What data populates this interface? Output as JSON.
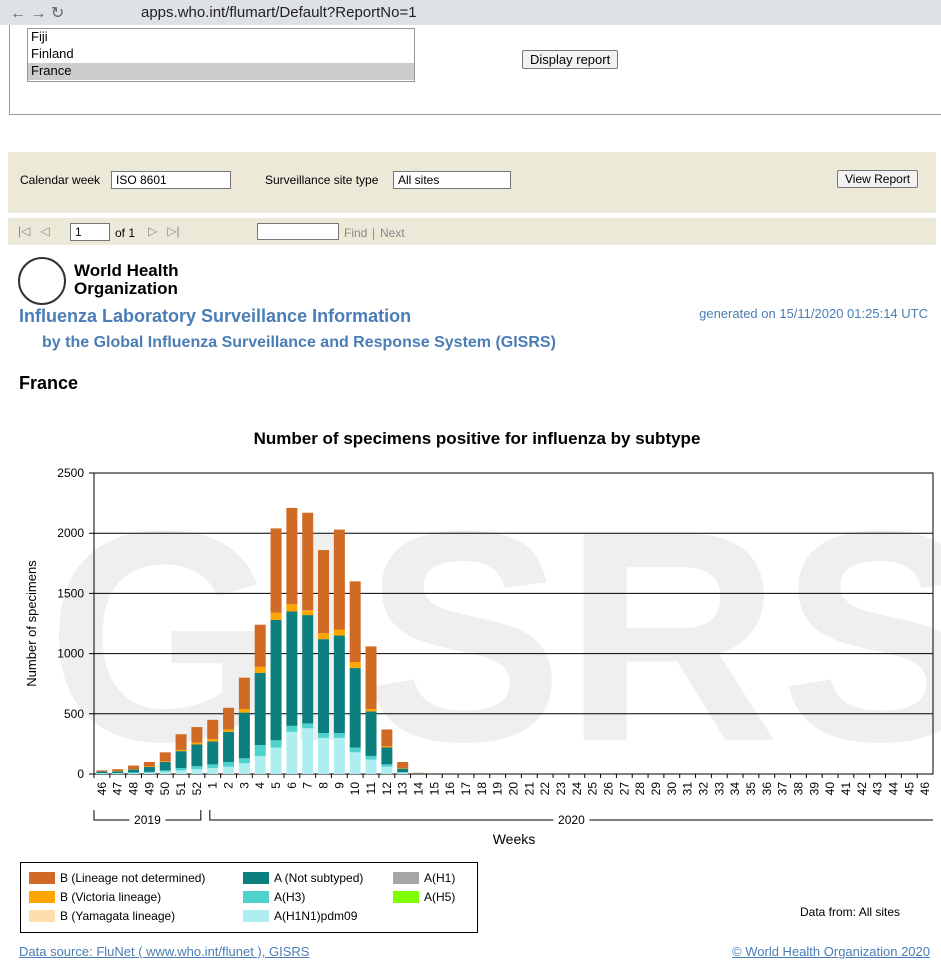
{
  "browser": {
    "url": "apps.who.int/flumart/Default?ReportNo=1"
  },
  "country_list": {
    "items": [
      "Fiji",
      "Finland",
      "France"
    ],
    "button": "Display report"
  },
  "parameters": {
    "calendar_label": "Calendar week",
    "calendar_value": "ISO 8601",
    "site_label": "Surveillance site type",
    "site_value": "All sites",
    "view_button": "View Report"
  },
  "toolbar": {
    "page": "1",
    "of": "of 1",
    "find": "Find",
    "separator": "|",
    "next": "Next"
  },
  "header": {
    "org_line1": "World Health",
    "org_line2": "Organization",
    "title": "Influenza Laboratory Surveillance Information",
    "subtitle": "by the Global Influenza Surveillance and Response System (GISRS)",
    "generated": "generated on 15/11/2020 01:25:14 UTC",
    "country": "France"
  },
  "chart_data": {
    "type": "bar",
    "stacked": true,
    "title": "Number of specimens positive for influenza by subtype",
    "watermark": "GISRS",
    "y_label": "Number of specimens",
    "x_label": "Weeks",
    "year_groups": [
      "2019",
      "2020"
    ],
    "categories": [
      "46",
      "47",
      "48",
      "49",
      "50",
      "51",
      "52",
      "1",
      "2",
      "3",
      "4",
      "5",
      "6",
      "7",
      "8",
      "9",
      "10",
      "11",
      "12",
      "13",
      "14",
      "15",
      "16",
      "17",
      "18",
      "19",
      "20",
      "21",
      "22",
      "23",
      "24",
      "25",
      "26",
      "27",
      "28",
      "29",
      "30",
      "31",
      "32",
      "33",
      "34",
      "35",
      "36",
      "37",
      "38",
      "39",
      "40",
      "41",
      "42",
      "43",
      "44",
      "45",
      "46"
    ],
    "ylim": [
      0,
      2500
    ],
    "yticks": [
      0,
      500,
      1000,
      1500,
      2000,
      2500
    ],
    "grid": true,
    "series": [
      {
        "name": "A(H1N1)pdm09",
        "color": "#aeeef0",
        "values": [
          5,
          5,
          8,
          10,
          20,
          30,
          40,
          50,
          60,
          90,
          150,
          220,
          350,
          380,
          300,
          300,
          180,
          120,
          60,
          10,
          0,
          0,
          0,
          0,
          0,
          0,
          0,
          0,
          0,
          0,
          0,
          0,
          0,
          0,
          0,
          0,
          0,
          0,
          0,
          0,
          0,
          0,
          0,
          0,
          0,
          0,
          0,
          0,
          0,
          0,
          0,
          0,
          0
        ]
      },
      {
        "name": "A(H3)",
        "color": "#4fd1cc",
        "values": [
          3,
          3,
          5,
          8,
          10,
          20,
          25,
          30,
          40,
          40,
          90,
          60,
          50,
          40,
          40,
          40,
          40,
          30,
          20,
          5,
          0,
          0,
          0,
          0,
          0,
          0,
          0,
          0,
          0,
          0,
          0,
          0,
          0,
          0,
          0,
          0,
          0,
          0,
          0,
          0,
          0,
          0,
          0,
          0,
          0,
          0,
          0,
          0,
          0,
          0,
          0,
          0,
          0
        ]
      },
      {
        "name": "A (Not subtyped)",
        "color": "#0e7f7f",
        "values": [
          12,
          15,
          25,
          40,
          70,
          140,
          180,
          190,
          250,
          380,
          600,
          1000,
          950,
          900,
          780,
          810,
          660,
          370,
          140,
          30,
          5,
          0,
          0,
          0,
          0,
          0,
          0,
          0,
          0,
          0,
          0,
          0,
          0,
          0,
          0,
          0,
          0,
          0,
          0,
          0,
          0,
          0,
          0,
          0,
          0,
          0,
          0,
          0,
          0,
          0,
          0,
          0,
          0
        ]
      },
      {
        "name": "A(H1)",
        "color": "#a6a6a6",
        "values": [
          0,
          0,
          0,
          0,
          0,
          0,
          0,
          0,
          0,
          0,
          0,
          0,
          0,
          0,
          0,
          0,
          0,
          0,
          0,
          0,
          0,
          0,
          0,
          0,
          0,
          0,
          0,
          0,
          0,
          0,
          0,
          0,
          0,
          0,
          0,
          0,
          0,
          0,
          0,
          0,
          0,
          0,
          0,
          0,
          0,
          0,
          0,
          0,
          0,
          0,
          0,
          0,
          0
        ]
      },
      {
        "name": "A(H5)",
        "color": "#7fff00",
        "values": [
          0,
          0,
          0,
          0,
          0,
          0,
          0,
          0,
          0,
          0,
          0,
          0,
          0,
          0,
          0,
          0,
          0,
          0,
          0,
          0,
          0,
          0,
          0,
          0,
          0,
          0,
          0,
          0,
          0,
          0,
          0,
          0,
          0,
          0,
          0,
          0,
          0,
          0,
          0,
          0,
          0,
          0,
          0,
          0,
          0,
          0,
          0,
          0,
          0,
          0,
          0,
          0,
          0
        ]
      },
      {
        "name": "B (Yamagata lineage)",
        "color": "#ffdeac",
        "values": [
          0,
          0,
          0,
          0,
          0,
          0,
          0,
          0,
          0,
          0,
          0,
          0,
          0,
          0,
          0,
          0,
          0,
          0,
          0,
          0,
          0,
          0,
          0,
          0,
          0,
          0,
          0,
          0,
          0,
          0,
          0,
          0,
          0,
          0,
          0,
          0,
          0,
          0,
          0,
          0,
          0,
          0,
          0,
          0,
          0,
          0,
          0,
          0,
          0,
          0,
          0,
          0,
          0
        ]
      },
      {
        "name": "B (Victoria lineage)",
        "color": "#ffa500",
        "values": [
          0,
          2,
          2,
          5,
          5,
          10,
          15,
          20,
          20,
          30,
          50,
          60,
          60,
          40,
          50,
          50,
          50,
          20,
          10,
          5,
          0,
          0,
          0,
          0,
          0,
          0,
          0,
          0,
          0,
          0,
          0,
          0,
          0,
          0,
          0,
          0,
          0,
          0,
          0,
          0,
          0,
          0,
          0,
          0,
          0,
          0,
          0,
          0,
          0,
          0,
          0,
          0,
          0
        ]
      },
      {
        "name": "B (Lineage not determined)",
        "color": "#d06a25",
        "values": [
          10,
          15,
          30,
          37,
          75,
          130,
          130,
          160,
          180,
          260,
          350,
          700,
          800,
          810,
          690,
          830,
          670,
          520,
          140,
          50,
          5,
          0,
          0,
          0,
          0,
          0,
          0,
          0,
          0,
          0,
          0,
          0,
          0,
          0,
          0,
          0,
          0,
          0,
          0,
          0,
          0,
          0,
          0,
          0,
          0,
          0,
          0,
          0,
          0,
          0,
          0,
          0,
          0
        ]
      }
    ],
    "note": "Data from: All sites"
  },
  "footer": {
    "source": "Data source: FluNet ( www.who.int/flunet ), GISRS",
    "copyright": "© World Health Organization 2020"
  }
}
